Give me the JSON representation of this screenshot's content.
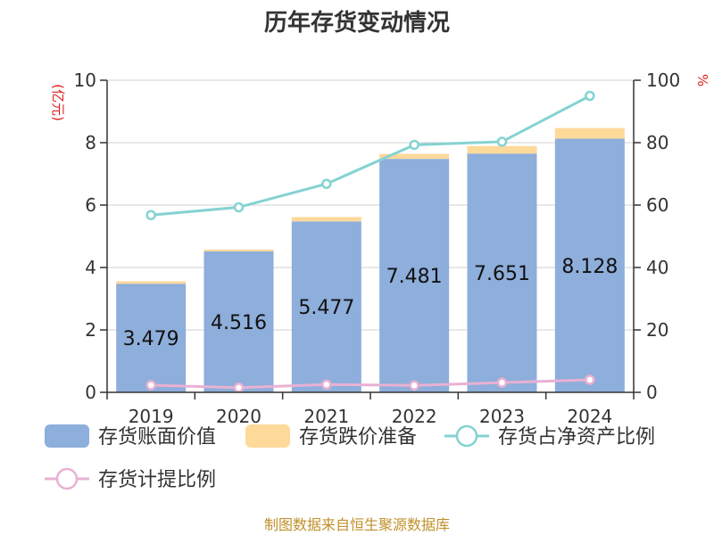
{
  "title": "历年存货变动情况",
  "source": "制图数据来自恒生聚源数据库",
  "chart_data": {
    "type": "bar",
    "categories": [
      "2019",
      "2020",
      "2021",
      "2022",
      "2023",
      "2024"
    ],
    "left_axis": {
      "unit": "(亿元)",
      "ylim": [
        0,
        10
      ],
      "ticks": [
        0,
        2,
        4,
        6,
        8,
        10
      ]
    },
    "right_axis": {
      "unit": "%",
      "ylim": [
        0,
        100
      ],
      "ticks": [
        0,
        20,
        40,
        60,
        80,
        100
      ]
    },
    "series": [
      {
        "name": "存货账面价值",
        "type": "bar",
        "stack": "inventory",
        "axis": "left",
        "color": "#8eaedb",
        "values": [
          3.479,
          4.516,
          5.477,
          7.481,
          7.651,
          8.128
        ],
        "labels": [
          "3.479",
          "4.516",
          "5.477",
          "7.481",
          "7.651",
          "8.128"
        ]
      },
      {
        "name": "存货跌价准备",
        "type": "bar",
        "stack": "inventory",
        "axis": "left",
        "color": "#fdd99a",
        "values": [
          0.08,
          0.06,
          0.14,
          0.16,
          0.24,
          0.34
        ]
      },
      {
        "name": "存货占净资产比例",
        "type": "line",
        "axis": "right",
        "color": "#85d2d2",
        "values": [
          56.8,
          59.3,
          66.8,
          79.3,
          80.3,
          95.0
        ]
      },
      {
        "name": "存货计提比例",
        "type": "line",
        "axis": "right",
        "color": "#e9b1d3",
        "values": [
          2.3,
          1.5,
          2.5,
          2.2,
          3.1,
          4.0
        ]
      }
    ],
    "grid": true,
    "legend_position": "bottom"
  }
}
